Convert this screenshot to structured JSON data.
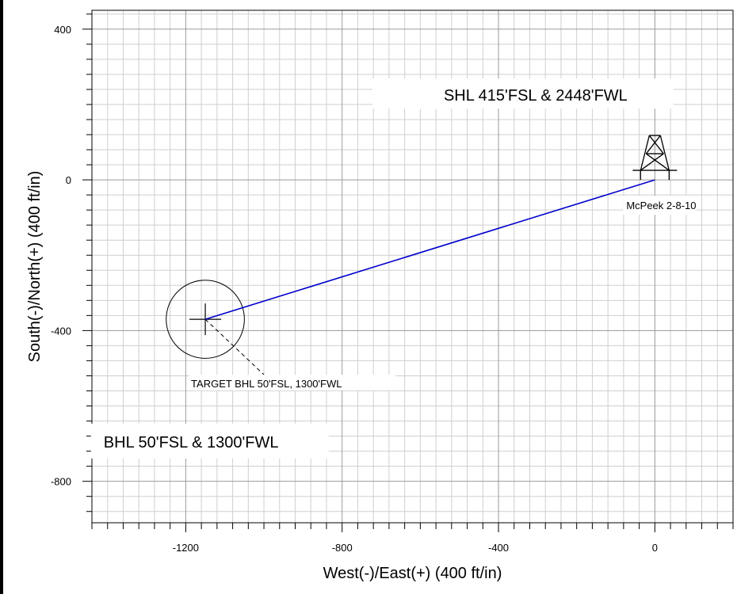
{
  "chart_data": {
    "type": "scatter",
    "xlabel": "West(-)/East(+) (400 ft/in)",
    "ylabel": "South(-)/North(+) (400 ft/in)",
    "xlim": [
      -1440,
      200
    ],
    "ylim": [
      -910,
      450
    ],
    "x_ticks": [
      -1200,
      -800,
      -400,
      0
    ],
    "y_ticks": [
      400,
      0,
      -400,
      -800
    ],
    "x_tick_labels": [
      "-1200",
      "-800",
      "-400",
      "0"
    ],
    "y_tick_labels": [
      "400",
      "0",
      "-400",
      "-800"
    ],
    "minor_grid_step": 40,
    "major_grid_step": 400,
    "grid": true,
    "well_path": {
      "color": "#0000cc",
      "x": [
        0,
        -1150
      ],
      "y": [
        0,
        -370
      ]
    },
    "rig": {
      "x": 0,
      "y": 0,
      "label": "McPeek 2-8-10"
    },
    "target": {
      "x": -1150,
      "y": -370,
      "radius": 100,
      "label": "TARGET BHL 50'FSL, 1300'FWL"
    },
    "annotations": [
      {
        "text": "SHL 415'FSL & 2448'FWL",
        "x": -540,
        "y": 210
      },
      {
        "text": "BHL 50'FSL & 1300'FWL",
        "x": -1410,
        "y": -710
      }
    ]
  }
}
